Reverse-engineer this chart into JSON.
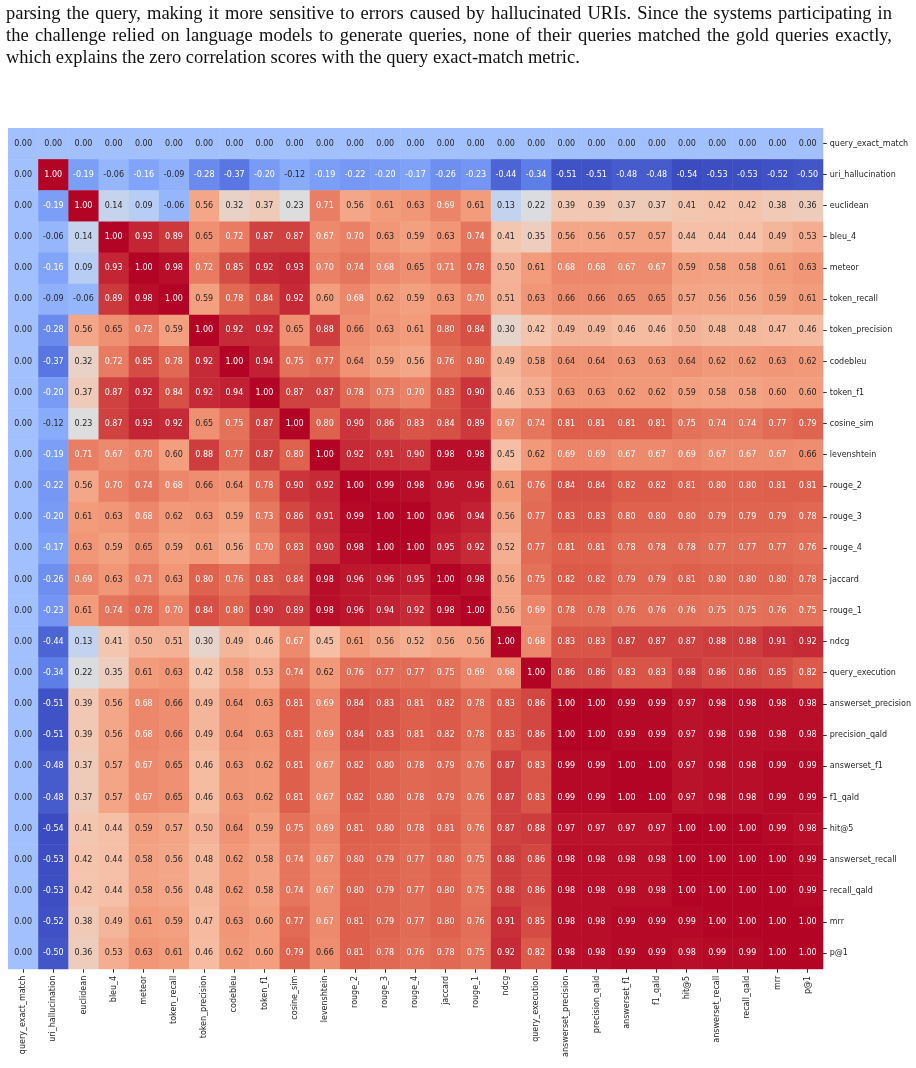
{
  "chart_data": {
    "type": "heatmap",
    "annotations": [
      "parsing the query, making it more sensitive to errors caused by hallucinated URIs. Since the systems participating in the challenge relied on language models to generate queries, none of their queries matched the gold queries exactly, which explains the zero correlation scores with the query exact-match metric."
    ],
    "categories": [
      "query_exact_match",
      "uri_hallucination",
      "euclidean",
      "bleu_4",
      "meteor",
      "token_recall",
      "token_precision",
      "codebleu",
      "token_f1",
      "cosine_sim",
      "levenshtein",
      "rouge_2",
      "rouge_3",
      "rouge_4",
      "jaccard",
      "rouge_1",
      "ndcg",
      "query_execution",
      "answerset_precision",
      "precision_qald",
      "answerset_f1",
      "f1_qald",
      "hit@5",
      "answerset_recall",
      "recall_qald",
      "mrr",
      "p@1"
    ],
    "y_categories": [
      "query_exact_match",
      "uri_hallucination",
      "euclidean",
      "bleu_4",
      "meteor",
      "token_recall",
      "token_precision",
      "codebleu",
      "token_f1",
      "cosine_sim",
      "levenshtein",
      "rouge_2",
      "rouge_3",
      "rouge_4",
      "jaccard",
      "rouge_1",
      "ndcg",
      "query_execution",
      "answerset_precision",
      "precision_qald",
      "answerset_f1",
      "f1_qald",
      "hit@5",
      "answerset_recall",
      "recall_qald",
      "mrr",
      "p@1"
    ],
    "data_labels": true,
    "cell_labels": [
      [
        "0.00",
        "0.00",
        "0.00",
        "0.00",
        "0.00",
        "0.00",
        "0.00",
        "0.00",
        "0.00",
        "0.00",
        "0.00",
        "0.00",
        "0.00",
        "0.00",
        "0.00",
        "0.00",
        "0.00",
        "0.00",
        "0.00",
        "0.00",
        "0.00",
        "0.00",
        "0.00",
        "0.00",
        "0.00",
        "0.00",
        "0.00"
      ],
      [
        "0.00",
        "1.00",
        "-0.19",
        "-0.06",
        "-0.16",
        "-0.09",
        "-0.28",
        "-0.37",
        "-0.20",
        "-0.12",
        "-0.19",
        "-0.22",
        "-0.20",
        "-0.17",
        "-0.26",
        "-0.23",
        "-0.44",
        "-0.34",
        "-0.51",
        "-0.51",
        "-0.48",
        "-0.48",
        "-0.54",
        "-0.53",
        "-0.53",
        "-0.52",
        "-0.50"
      ],
      [
        "0.00",
        "-0.19",
        "1.00",
        "0.14",
        "0.09",
        "-0.06",
        "0.56",
        "0.32",
        "0.37",
        "0.23",
        "0.71",
        "0.56",
        "0.61",
        "0.63",
        "0.69",
        "0.61",
        "0.13",
        "0.22",
        "0.39",
        "0.39",
        "0.37",
        "0.37",
        "0.41",
        "0.42",
        "0.42",
        "0.38",
        "0.36"
      ],
      [
        "0.00",
        "-0.06",
        "0.14",
        "1.00",
        "0.93",
        "0.89",
        "0.65",
        "0.72",
        "0.87",
        "0.87",
        "0.67",
        "0.70",
        "0.63",
        "0.59",
        "0.63",
        "0.74",
        "0.41",
        "0.35",
        "0.56",
        "0.56",
        "0.57",
        "0.57",
        "0.44",
        "0.44",
        "0.44",
        "0.49",
        "0.53"
      ],
      [
        "0.00",
        "-0.16",
        "0.09",
        "0.93",
        "1.00",
        "0.98",
        "0.72",
        "0.85",
        "0.92",
        "0.93",
        "0.70",
        "0.74",
        "0.68",
        "0.65",
        "0.71",
        "0.78",
        "0.50",
        "0.61",
        "0.68",
        "0.68",
        "0.67",
        "0.67",
        "0.59",
        "0.58",
        "0.58",
        "0.61",
        "0.63"
      ],
      [
        "0.00",
        "-0.09",
        "-0.06",
        "0.89",
        "0.98",
        "1.00",
        "0.59",
        "0.78",
        "0.84",
        "0.92",
        "0.60",
        "0.68",
        "0.62",
        "0.59",
        "0.63",
        "0.70",
        "0.51",
        "0.63",
        "0.66",
        "0.66",
        "0.65",
        "0.65",
        "0.57",
        "0.56",
        "0.56",
        "0.59",
        "0.61"
      ],
      [
        "0.00",
        "-0.28",
        "0.56",
        "0.65",
        "0.72",
        "0.59",
        "1.00",
        "0.92",
        "0.92",
        "0.65",
        "0.88",
        "0.66",
        "0.63",
        "0.61",
        "0.80",
        "0.84",
        "0.30",
        "0.42",
        "0.49",
        "0.49",
        "0.46",
        "0.46",
        "0.50",
        "0.48",
        "0.48",
        "0.47",
        "0.46"
      ],
      [
        "0.00",
        "-0.37",
        "0.32",
        "0.72",
        "0.85",
        "0.78",
        "0.92",
        "1.00",
        "0.94",
        "0.75",
        "0.77",
        "0.64",
        "0.59",
        "0.56",
        "0.76",
        "0.80",
        "0.49",
        "0.58",
        "0.64",
        "0.64",
        "0.63",
        "0.63",
        "0.64",
        "0.62",
        "0.62",
        "0.63",
        "0.62"
      ],
      [
        "0.00",
        "-0.20",
        "0.37",
        "0.87",
        "0.92",
        "0.84",
        "0.92",
        "0.94",
        "1.00",
        "0.87",
        "0.87",
        "0.78",
        "0.73",
        "0.70",
        "0.83",
        "0.90",
        "0.46",
        "0.53",
        "0.63",
        "0.63",
        "0.62",
        "0.62",
        "0.59",
        "0.58",
        "0.58",
        "0.60",
        "0.60"
      ],
      [
        "0.00",
        "-0.12",
        "0.23",
        "0.87",
        "0.93",
        "0.92",
        "0.65",
        "0.75",
        "0.87",
        "1.00",
        "0.80",
        "0.90",
        "0.86",
        "0.83",
        "0.84",
        "0.89",
        "0.67",
        "0.74",
        "0.81",
        "0.81",
        "0.81",
        "0.81",
        "0.75",
        "0.74",
        "0.74",
        "0.77",
        "0.79"
      ],
      [
        "0.00",
        "-0.19",
        "0.71",
        "0.67",
        "0.70",
        "0.60",
        "0.88",
        "0.77",
        "0.87",
        "0.80",
        "1.00",
        "0.92",
        "0.91",
        "0.90",
        "0.98",
        "0.98",
        "0.45",
        "0.62",
        "0.69",
        "0.69",
        "0.67",
        "0.67",
        "0.69",
        "0.67",
        "0.67",
        "0.67",
        "0.66"
      ],
      [
        "0.00",
        "-0.22",
        "0.56",
        "0.70",
        "0.74",
        "0.68",
        "0.66",
        "0.64",
        "0.78",
        "0.90",
        "0.92",
        "1.00",
        "0.99",
        "0.98",
        "0.96",
        "0.96",
        "0.61",
        "0.76",
        "0.84",
        "0.84",
        "0.82",
        "0.82",
        "0.81",
        "0.80",
        "0.80",
        "0.81",
        "0.81"
      ],
      [
        "0.00",
        "-0.20",
        "0.61",
        "0.63",
        "0.68",
        "0.62",
        "0.63",
        "0.59",
        "0.73",
        "0.86",
        "0.91",
        "0.99",
        "1.00",
        "1.00",
        "0.96",
        "0.94",
        "0.56",
        "0.77",
        "0.83",
        "0.83",
        "0.80",
        "0.80",
        "0.80",
        "0.79",
        "0.79",
        "0.79",
        "0.78"
      ],
      [
        "0.00",
        "-0.17",
        "0.63",
        "0.59",
        "0.65",
        "0.59",
        "0.61",
        "0.56",
        "0.70",
        "0.83",
        "0.90",
        "0.98",
        "1.00",
        "1.00",
        "0.95",
        "0.92",
        "0.52",
        "0.77",
        "0.81",
        "0.81",
        "0.78",
        "0.78",
        "0.78",
        "0.77",
        "0.77",
        "0.77",
        "0.76"
      ],
      [
        "0.00",
        "-0.26",
        "0.69",
        "0.63",
        "0.71",
        "0.63",
        "0.80",
        "0.76",
        "0.83",
        "0.84",
        "0.98",
        "0.96",
        "0.96",
        "0.95",
        "1.00",
        "0.98",
        "0.56",
        "0.75",
        "0.82",
        "0.82",
        "0.79",
        "0.79",
        "0.81",
        "0.80",
        "0.80",
        "0.80",
        "0.78"
      ],
      [
        "0.00",
        "-0.23",
        "0.61",
        "0.74",
        "0.78",
        "0.70",
        "0.84",
        "0.80",
        "0.90",
        "0.89",
        "0.98",
        "0.96",
        "0.94",
        "0.92",
        "0.98",
        "1.00",
        "0.56",
        "0.69",
        "0.78",
        "0.78",
        "0.76",
        "0.76",
        "0.76",
        "0.75",
        "0.75",
        "0.76",
        "0.75"
      ],
      [
        "0.00",
        "-0.44",
        "0.13",
        "0.41",
        "0.50",
        "0.51",
        "0.30",
        "0.49",
        "0.46",
        "0.67",
        "0.45",
        "0.61",
        "0.56",
        "0.52",
        "0.56",
        "0.56",
        "1.00",
        "0.68",
        "0.83",
        "0.83",
        "0.87",
        "0.87",
        "0.87",
        "0.88",
        "0.88",
        "0.91",
        "0.92"
      ],
      [
        "0.00",
        "-0.34",
        "0.22",
        "0.35",
        "0.61",
        "0.63",
        "0.42",
        "0.58",
        "0.53",
        "0.74",
        "0.62",
        "0.76",
        "0.77",
        "0.77",
        "0.75",
        "0.69",
        "0.68",
        "1.00",
        "0.86",
        "0.86",
        "0.83",
        "0.83",
        "0.88",
        "0.86",
        "0.86",
        "0.85",
        "0.82"
      ],
      [
        "0.00",
        "-0.51",
        "0.39",
        "0.56",
        "0.68",
        "0.66",
        "0.49",
        "0.64",
        "0.63",
        "0.81",
        "0.69",
        "0.84",
        "0.83",
        "0.81",
        "0.82",
        "0.78",
        "0.83",
        "0.86",
        "1.00",
        "1.00",
        "0.99",
        "0.99",
        "0.97",
        "0.98",
        "0.98",
        "0.98",
        "0.98"
      ],
      [
        "0.00",
        "-0.51",
        "0.39",
        "0.56",
        "0.68",
        "0.66",
        "0.49",
        "0.64",
        "0.63",
        "0.81",
        "0.69",
        "0.84",
        "0.83",
        "0.81",
        "0.82",
        "0.78",
        "0.83",
        "0.86",
        "1.00",
        "1.00",
        "0.99",
        "0.99",
        "0.97",
        "0.98",
        "0.98",
        "0.98",
        "0.98"
      ],
      [
        "0.00",
        "-0.48",
        "0.37",
        "0.57",
        "0.67",
        "0.65",
        "0.46",
        "0.63",
        "0.62",
        "0.81",
        "0.67",
        "0.82",
        "0.80",
        "0.78",
        "0.79",
        "0.76",
        "0.87",
        "0.83",
        "0.99",
        "0.99",
        "1.00",
        "1.00",
        "0.97",
        "0.98",
        "0.98",
        "0.99",
        "0.99"
      ],
      [
        "0.00",
        "-0.48",
        "0.37",
        "0.57",
        "0.67",
        "0.65",
        "0.46",
        "0.63",
        "0.62",
        "0.81",
        "0.67",
        "0.82",
        "0.80",
        "0.78",
        "0.79",
        "0.76",
        "0.87",
        "0.83",
        "0.99",
        "0.99",
        "1.00",
        "1.00",
        "0.97",
        "0.98",
        "0.98",
        "0.99",
        "0.99"
      ],
      [
        "0.00",
        "-0.54",
        "0.41",
        "0.44",
        "0.59",
        "0.57",
        "0.50",
        "0.64",
        "0.59",
        "0.75",
        "0.69",
        "0.81",
        "0.80",
        "0.78",
        "0.81",
        "0.76",
        "0.87",
        "0.88",
        "0.97",
        "0.97",
        "0.97",
        "0.97",
        "1.00",
        "1.00",
        "1.00",
        "0.99",
        "0.98"
      ],
      [
        "0.00",
        "-0.53",
        "0.42",
        "0.44",
        "0.58",
        "0.56",
        "0.48",
        "0.62",
        "0.58",
        "0.74",
        "0.67",
        "0.80",
        "0.79",
        "0.77",
        "0.80",
        "0.75",
        "0.88",
        "0.86",
        "0.98",
        "0.98",
        "0.98",
        "0.98",
        "1.00",
        "1.00",
        "1.00",
        "1.00",
        "0.99"
      ],
      [
        "0.00",
        "-0.53",
        "0.42",
        "0.44",
        "0.58",
        "0.56",
        "0.48",
        "0.62",
        "0.58",
        "0.74",
        "0.67",
        "0.80",
        "0.79",
        "0.77",
        "0.80",
        "0.75",
        "0.88",
        "0.86",
        "0.98",
        "0.98",
        "0.98",
        "0.98",
        "1.00",
        "1.00",
        "1.00",
        "1.00",
        "0.99"
      ],
      [
        "0.00",
        "-0.52",
        "0.38",
        "0.49",
        "0.61",
        "0.59",
        "0.47",
        "0.63",
        "0.60",
        "0.77",
        "0.67",
        "0.81",
        "0.79",
        "0.77",
        "0.80",
        "0.76",
        "0.91",
        "0.85",
        "0.98",
        "0.98",
        "0.99",
        "0.99",
        "0.99",
        "1.00",
        "1.00",
        "1.00",
        "1.00"
      ],
      [
        "0.00",
        "-0.50",
        "0.36",
        "0.53",
        "0.63",
        "0.61",
        "0.46",
        "0.62",
        "0.60",
        "0.79",
        "0.66",
        "0.81",
        "0.78",
        "0.76",
        "0.78",
        "0.75",
        "0.92",
        "0.82",
        "0.98",
        "0.98",
        "0.99",
        "0.99",
        "0.98",
        "0.99",
        "0.99",
        "1.00",
        "1.00"
      ]
    ],
    "cells": [
      [
        0,
        0,
        0,
        0,
        0,
        0,
        0,
        0,
        0,
        0,
        0,
        0,
        0,
        0,
        0,
        0,
        0,
        0,
        0,
        0,
        0,
        0,
        0,
        0,
        0,
        0,
        0
      ],
      [
        0,
        1.0,
        -0.19,
        -0.06,
        -0.16,
        -0.09,
        -0.28,
        -0.37,
        -0.2,
        -0.12,
        -0.19,
        -0.22,
        -0.2,
        -0.17,
        -0.26,
        -0.23,
        -0.44,
        -0.34,
        -0.51,
        -0.51,
        -0.48,
        -0.48,
        -0.54,
        -0.53,
        -0.53,
        -0.52,
        -0.5
      ],
      [
        0,
        -0.19,
        1.0,
        0.14,
        0.09,
        -0.06,
        0.56,
        0.32,
        0.37,
        0.23,
        0.71,
        0.56,
        0.61,
        0.63,
        0.69,
        0.61,
        0.13,
        0.22,
        0.39,
        0.39,
        0.37,
        0.37,
        0.41,
        0.42,
        0.42,
        0.38,
        0.36
      ],
      [
        0,
        -0.06,
        0.14,
        1.0,
        0.93,
        0.89,
        0.65,
        0.72,
        0.87,
        0.87,
        0.67,
        0.7,
        0.63,
        0.59,
        0.63,
        0.74,
        0.41,
        0.35,
        0.56,
        0.56,
        0.57,
        0.57,
        0.44,
        0.44,
        0.44,
        0.49,
        0.53
      ],
      [
        0,
        -0.16,
        0.09,
        0.93,
        1.0,
        0.98,
        0.72,
        0.85,
        0.92,
        0.93,
        0.7,
        0.74,
        0.68,
        0.65,
        0.71,
        0.78,
        0.5,
        0.61,
        0.68,
        0.68,
        0.67,
        0.67,
        0.59,
        0.58,
        0.58,
        0.61,
        0.63
      ],
      [
        0,
        -0.09,
        -0.06,
        0.89,
        0.98,
        1.0,
        0.59,
        0.78,
        0.84,
        0.92,
        0.6,
        0.68,
        0.62,
        0.59,
        0.63,
        0.7,
        0.51,
        0.63,
        0.66,
        0.66,
        0.65,
        0.65,
        0.57,
        0.56,
        0.56,
        0.59,
        0.61
      ],
      [
        0,
        -0.28,
        0.56,
        0.65,
        0.72,
        0.59,
        1.0,
        0.92,
        0.92,
        0.65,
        0.88,
        0.66,
        0.63,
        0.61,
        0.8,
        0.84,
        0.3,
        0.42,
        0.49,
        0.49,
        0.46,
        0.46,
        0.5,
        0.48,
        0.48,
        0.47,
        0.46
      ],
      [
        0,
        -0.37,
        0.32,
        0.72,
        0.85,
        0.78,
        0.92,
        1.0,
        0.94,
        0.75,
        0.77,
        0.64,
        0.59,
        0.56,
        0.76,
        0.8,
        0.49,
        0.58,
        0.64,
        0.64,
        0.63,
        0.63,
        0.64,
        0.62,
        0.62,
        0.63,
        0.62
      ],
      [
        0,
        -0.2,
        0.37,
        0.87,
        0.92,
        0.84,
        0.92,
        0.94,
        1.0,
        0.87,
        0.87,
        0.78,
        0.73,
        0.7,
        0.83,
        0.9,
        0.46,
        0.53,
        0.63,
        0.63,
        0.62,
        0.62,
        0.59,
        0.58,
        0.58,
        0.6,
        0.6
      ],
      [
        0,
        -0.12,
        0.23,
        0.87,
        0.93,
        0.92,
        0.65,
        0.75,
        0.87,
        1.0,
        0.8,
        0.9,
        0.86,
        0.83,
        0.84,
        0.89,
        0.67,
        0.74,
        0.81,
        0.81,
        0.81,
        0.81,
        0.75,
        0.74,
        0.74,
        0.77,
        0.79
      ],
      [
        0,
        -0.19,
        0.71,
        0.67,
        0.7,
        0.6,
        0.88,
        0.77,
        0.87,
        0.8,
        1.0,
        0.92,
        0.91,
        0.9,
        0.98,
        0.98,
        0.45,
        0.62,
        0.69,
        0.69,
        0.67,
        0.67,
        0.69,
        0.67,
        0.67,
        0.67,
        0.66
      ],
      [
        0,
        -0.22,
        0.56,
        0.7,
        0.74,
        0.68,
        0.66,
        0.64,
        0.78,
        0.9,
        0.92,
        1.0,
        0.99,
        0.98,
        0.96,
        0.96,
        0.61,
        0.76,
        0.84,
        0.84,
        0.82,
        0.82,
        0.81,
        0.8,
        0.8,
        0.81,
        0.81
      ],
      [
        0,
        -0.2,
        0.61,
        0.63,
        0.68,
        0.62,
        0.63,
        0.59,
        0.73,
        0.86,
        0.91,
        0.99,
        1.0,
        1.0,
        0.96,
        0.94,
        0.56,
        0.77,
        0.83,
        0.83,
        0.8,
        0.8,
        0.8,
        0.79,
        0.79,
        0.79,
        0.78
      ],
      [
        0,
        -0.17,
        0.63,
        0.59,
        0.65,
        0.59,
        0.61,
        0.56,
        0.7,
        0.83,
        0.9,
        0.98,
        1.0,
        1.0,
        0.95,
        0.92,
        0.52,
        0.77,
        0.81,
        0.81,
        0.78,
        0.78,
        0.78,
        0.77,
        0.77,
        0.77,
        0.76
      ],
      [
        0,
        -0.26,
        0.69,
        0.63,
        0.71,
        0.63,
        0.8,
        0.76,
        0.83,
        0.84,
        0.98,
        0.96,
        0.96,
        0.95,
        1.0,
        0.98,
        0.56,
        0.75,
        0.82,
        0.82,
        0.79,
        0.79,
        0.81,
        0.8,
        0.8,
        0.8,
        0.78
      ],
      [
        0,
        -0.23,
        0.61,
        0.74,
        0.78,
        0.7,
        0.84,
        0.8,
        0.9,
        0.89,
        0.98,
        0.96,
        0.94,
        0.92,
        0.98,
        1.0,
        0.56,
        0.69,
        0.78,
        0.78,
        0.76,
        0.76,
        0.76,
        0.75,
        0.75,
        0.76,
        0.75
      ],
      [
        0,
        -0.44,
        0.13,
        0.41,
        0.5,
        0.51,
        0.3,
        0.49,
        0.46,
        0.67,
        0.45,
        0.61,
        0.56,
        0.52,
        0.56,
        0.56,
        1.0,
        0.68,
        0.83,
        0.83,
        0.87,
        0.87,
        0.87,
        0.88,
        0.88,
        0.91,
        0.92
      ],
      [
        0,
        -0.34,
        0.22,
        0.35,
        0.61,
        0.63,
        0.42,
        0.58,
        0.53,
        0.74,
        0.62,
        0.76,
        0.77,
        0.77,
        0.75,
        0.69,
        0.68,
        1.0,
        0.86,
        0.86,
        0.83,
        0.83,
        0.88,
        0.86,
        0.86,
        0.85,
        0.82
      ],
      [
        0,
        -0.51,
        0.39,
        0.56,
        0.68,
        0.66,
        0.49,
        0.64,
        0.63,
        0.81,
        0.69,
        0.84,
        0.83,
        0.81,
        0.82,
        0.78,
        0.83,
        0.86,
        1.0,
        1.0,
        0.99,
        0.99,
        0.97,
        0.98,
        0.98,
        0.98,
        0.98
      ],
      [
        0,
        -0.51,
        0.39,
        0.56,
        0.68,
        0.66,
        0.49,
        0.64,
        0.63,
        0.81,
        0.69,
        0.84,
        0.83,
        0.81,
        0.82,
        0.78,
        0.83,
        0.86,
        1.0,
        1.0,
        0.99,
        0.99,
        0.97,
        0.98,
        0.98,
        0.98,
        0.98
      ],
      [
        0,
        -0.48,
        0.37,
        0.57,
        0.67,
        0.65,
        0.46,
        0.63,
        0.62,
        0.81,
        0.67,
        0.82,
        0.8,
        0.78,
        0.79,
        0.76,
        0.87,
        0.83,
        0.99,
        0.99,
        1.0,
        1.0,
        0.97,
        0.98,
        0.98,
        0.99,
        0.99
      ],
      [
        0,
        -0.48,
        0.37,
        0.57,
        0.67,
        0.65,
        0.46,
        0.63,
        0.62,
        0.81,
        0.67,
        0.82,
        0.8,
        0.78,
        0.79,
        0.76,
        0.87,
        0.83,
        0.99,
        0.99,
        1.0,
        1.0,
        0.97,
        0.98,
        0.98,
        0.99,
        0.99
      ],
      [
        0,
        -0.54,
        0.41,
        0.44,
        0.59,
        0.57,
        0.5,
        0.64,
        0.59,
        0.75,
        0.69,
        0.81,
        0.8,
        0.78,
        0.81,
        0.76,
        0.87,
        0.88,
        0.97,
        0.97,
        0.97,
        0.97,
        1.0,
        1.0,
        1.0,
        0.99,
        0.98
      ],
      [
        0,
        -0.53,
        0.42,
        0.44,
        0.58,
        0.56,
        0.48,
        0.62,
        0.58,
        0.74,
        0.67,
        0.8,
        0.79,
        0.77,
        0.8,
        0.75,
        0.88,
        0.86,
        0.98,
        0.98,
        0.98,
        0.98,
        1.0,
        1.0,
        1.0,
        1.0,
        0.99
      ],
      [
        0,
        -0.53,
        0.42,
        0.44,
        0.58,
        0.56,
        0.48,
        0.62,
        0.58,
        0.74,
        0.67,
        0.8,
        0.79,
        0.77,
        0.8,
        0.75,
        0.88,
        0.86,
        0.98,
        0.98,
        0.98,
        0.98,
        1.0,
        1.0,
        1.0,
        1.0,
        0.99
      ],
      [
        0,
        -0.52,
        0.38,
        0.49,
        0.61,
        0.59,
        0.47,
        0.63,
        0.6,
        0.77,
        0.67,
        0.81,
        0.79,
        0.77,
        0.8,
        0.76,
        0.91,
        0.85,
        0.98,
        0.98,
        0.99,
        0.99,
        0.99,
        1.0,
        1.0,
        1.0,
        1.0
      ],
      [
        0,
        -0.5,
        0.36,
        0.53,
        0.63,
        0.61,
        0.46,
        0.62,
        0.6,
        0.79,
        0.66,
        0.81,
        0.78,
        0.76,
        0.78,
        0.75,
        0.92,
        0.82,
        0.98,
        0.98,
        0.99,
        0.99,
        0.98,
        0.99,
        0.99,
        1.0,
        1.0
      ]
    ]
  }
}
